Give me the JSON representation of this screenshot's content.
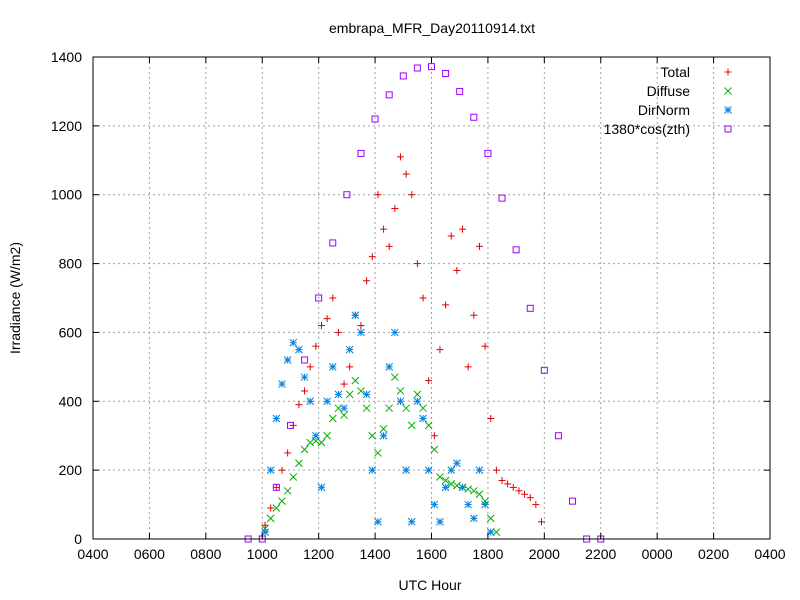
{
  "chart_data": {
    "type": "scatter",
    "title": "embrapa_MFR_Day20110914.txt",
    "xlabel": "UTC Hour",
    "ylabel": "Irradiance (W/m2)",
    "xlim": [
      4,
      28
    ],
    "ylim": [
      0,
      1400
    ],
    "x_tick_labels": [
      "0400",
      "0600",
      "0800",
      "1000",
      "1200",
      "1400",
      "1600",
      "1800",
      "2000",
      "2200",
      "0000",
      "0200",
      "0400"
    ],
    "y_ticks": [
      0,
      200,
      400,
      600,
      800,
      1000,
      1200,
      1400
    ],
    "grid": true,
    "legend_position": "top-right",
    "series": [
      {
        "name": "Total",
        "color": "#e00000",
        "marker": "plus",
        "points": [
          [
            10.1,
            40
          ],
          [
            10.3,
            90
          ],
          [
            10.5,
            150
          ],
          [
            10.7,
            200
          ],
          [
            10.9,
            250
          ],
          [
            11.1,
            330
          ],
          [
            11.3,
            390
          ],
          [
            11.5,
            430
          ],
          [
            11.7,
            500
          ],
          [
            11.9,
            560
          ],
          [
            12.1,
            620
          ],
          [
            12.3,
            640
          ],
          [
            12.5,
            700
          ],
          [
            12.7,
            600
          ],
          [
            12.9,
            450
          ],
          [
            13.1,
            500
          ],
          [
            13.3,
            650
          ],
          [
            13.5,
            620
          ],
          [
            13.7,
            750
          ],
          [
            13.9,
            820
          ],
          [
            14.1,
            1000
          ],
          [
            14.3,
            900
          ],
          [
            14.5,
            850
          ],
          [
            14.7,
            960
          ],
          [
            14.9,
            1110
          ],
          [
            15.1,
            1060
          ],
          [
            15.3,
            1000
          ],
          [
            15.5,
            800
          ],
          [
            15.7,
            700
          ],
          [
            15.9,
            460
          ],
          [
            16.1,
            300
          ],
          [
            16.3,
            550
          ],
          [
            16.5,
            680
          ],
          [
            16.7,
            880
          ],
          [
            16.9,
            780
          ],
          [
            17.1,
            900
          ],
          [
            17.3,
            500
          ],
          [
            17.5,
            650
          ],
          [
            17.7,
            850
          ],
          [
            17.9,
            560
          ],
          [
            18.1,
            350
          ],
          [
            18.3,
            200
          ],
          [
            18.5,
            170
          ],
          [
            18.7,
            160
          ],
          [
            18.9,
            150
          ],
          [
            19.1,
            140
          ],
          [
            19.3,
            130
          ],
          [
            19.5,
            120
          ],
          [
            19.7,
            100
          ],
          [
            19.9,
            50
          ]
        ]
      },
      {
        "name": "Diffuse",
        "color": "#00b000",
        "marker": "cross",
        "points": [
          [
            10.1,
            30
          ],
          [
            10.3,
            60
          ],
          [
            10.5,
            90
          ],
          [
            10.7,
            110
          ],
          [
            10.9,
            140
          ],
          [
            11.1,
            180
          ],
          [
            11.3,
            220
          ],
          [
            11.5,
            260
          ],
          [
            11.7,
            280
          ],
          [
            11.9,
            285
          ],
          [
            12.1,
            280
          ],
          [
            12.3,
            300
          ],
          [
            12.5,
            350
          ],
          [
            12.7,
            380
          ],
          [
            12.9,
            360
          ],
          [
            13.1,
            420
          ],
          [
            13.3,
            460
          ],
          [
            13.5,
            430
          ],
          [
            13.7,
            380
          ],
          [
            13.9,
            300
          ],
          [
            14.1,
            250
          ],
          [
            14.3,
            320
          ],
          [
            14.5,
            380
          ],
          [
            14.7,
            470
          ],
          [
            14.9,
            430
          ],
          [
            15.1,
            380
          ],
          [
            15.3,
            330
          ],
          [
            15.5,
            420
          ],
          [
            15.7,
            380
          ],
          [
            15.9,
            330
          ],
          [
            16.1,
            260
          ],
          [
            16.3,
            180
          ],
          [
            16.5,
            170
          ],
          [
            16.7,
            160
          ],
          [
            16.9,
            155
          ],
          [
            17.1,
            150
          ],
          [
            17.3,
            145
          ],
          [
            17.5,
            140
          ],
          [
            17.7,
            130
          ],
          [
            17.9,
            110
          ],
          [
            18.1,
            60
          ],
          [
            18.3,
            20
          ]
        ]
      },
      {
        "name": "DirNorm",
        "color": "#0080e0",
        "marker": "star",
        "points": [
          [
            10.1,
            20
          ],
          [
            10.3,
            200
          ],
          [
            10.5,
            350
          ],
          [
            10.7,
            450
          ],
          [
            10.9,
            520
          ],
          [
            11.1,
            570
          ],
          [
            11.3,
            550
          ],
          [
            11.5,
            470
          ],
          [
            11.7,
            400
          ],
          [
            11.9,
            300
          ],
          [
            12.1,
            150
          ],
          [
            12.3,
            400
          ],
          [
            12.5,
            500
          ],
          [
            12.7,
            420
          ],
          [
            12.9,
            380
          ],
          [
            13.1,
            550
          ],
          [
            13.3,
            650
          ],
          [
            13.5,
            600
          ],
          [
            13.7,
            420
          ],
          [
            13.9,
            200
          ],
          [
            14.1,
            50
          ],
          [
            14.3,
            300
          ],
          [
            14.5,
            500
          ],
          [
            14.7,
            600
          ],
          [
            14.9,
            400
          ],
          [
            15.1,
            200
          ],
          [
            15.3,
            50
          ],
          [
            15.5,
            400
          ],
          [
            15.7,
            350
          ],
          [
            15.9,
            200
          ],
          [
            16.1,
            100
          ],
          [
            16.3,
            50
          ],
          [
            16.5,
            150
          ],
          [
            16.7,
            200
          ],
          [
            16.9,
            220
          ],
          [
            17.1,
            150
          ],
          [
            17.3,
            100
          ],
          [
            17.5,
            60
          ],
          [
            17.7,
            200
          ],
          [
            17.9,
            100
          ],
          [
            18.1,
            20
          ]
        ]
      },
      {
        "name": "1380*cos(zth)",
        "color": "#a000ff",
        "marker": "square",
        "points": [
          [
            9.5,
            0
          ],
          [
            10.0,
            0
          ],
          [
            10.5,
            150
          ],
          [
            11.0,
            330
          ],
          [
            11.5,
            520
          ],
          [
            12.0,
            700
          ],
          [
            12.5,
            860
          ],
          [
            13.0,
            1000
          ],
          [
            13.5,
            1120
          ],
          [
            14.0,
            1220
          ],
          [
            14.5,
            1290
          ],
          [
            15.0,
            1345
          ],
          [
            15.5,
            1368
          ],
          [
            16.0,
            1372
          ],
          [
            16.5,
            1352
          ],
          [
            17.0,
            1300
          ],
          [
            17.5,
            1225
          ],
          [
            18.0,
            1120
          ],
          [
            18.5,
            990
          ],
          [
            19.0,
            840
          ],
          [
            19.5,
            670
          ],
          [
            20.0,
            490
          ],
          [
            20.5,
            300
          ],
          [
            21.0,
            110
          ],
          [
            21.5,
            0
          ],
          [
            22.0,
            0
          ]
        ]
      }
    ]
  }
}
